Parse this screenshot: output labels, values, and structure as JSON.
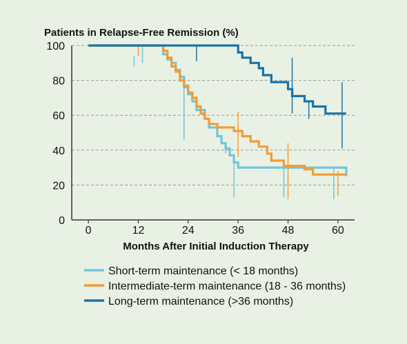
{
  "chart_data": {
    "type": "line",
    "step": true,
    "ylabel": "Patients in Relapse-Free Remission (%)",
    "xlabel": "Months After Initial Induction Therapy",
    "xlim": [
      -4,
      64
    ],
    "ylim": [
      0,
      100
    ],
    "xticks": [
      0,
      12,
      24,
      36,
      48,
      60
    ],
    "yticks": [
      0,
      20,
      40,
      60,
      80,
      100
    ],
    "grid": "horizontal-dashed",
    "legend_position": "bottom-left",
    "series": [
      {
        "name": "Short-term maintenance (< 18 months)",
        "color": "#6fc6dc",
        "points": [
          [
            0,
            100
          ],
          [
            18,
            100
          ],
          [
            18,
            95
          ],
          [
            19,
            95
          ],
          [
            19,
            92
          ],
          [
            20,
            92
          ],
          [
            20,
            90
          ],
          [
            21,
            90
          ],
          [
            21,
            86
          ],
          [
            22,
            86
          ],
          [
            22,
            82
          ],
          [
            23,
            82
          ],
          [
            23,
            76
          ],
          [
            24,
            76
          ],
          [
            24,
            72
          ],
          [
            25,
            72
          ],
          [
            25,
            68
          ],
          [
            26,
            68
          ],
          [
            26,
            63
          ],
          [
            28,
            63
          ],
          [
            28,
            58
          ],
          [
            29,
            58
          ],
          [
            29,
            53
          ],
          [
            31,
            53
          ],
          [
            31,
            48
          ],
          [
            32,
            48
          ],
          [
            32,
            44
          ],
          [
            33,
            44
          ],
          [
            33,
            41
          ],
          [
            34,
            41
          ],
          [
            34,
            37
          ],
          [
            35,
            37
          ],
          [
            35,
            33
          ],
          [
            36,
            33
          ],
          [
            36,
            30
          ],
          [
            62,
            30
          ],
          [
            62,
            25
          ]
        ],
        "censors": [
          [
            11,
            94,
            88
          ],
          [
            13,
            100,
            90
          ],
          [
            23,
            76,
            46
          ],
          [
            33,
            44,
            38
          ],
          [
            35,
            35,
            13
          ],
          [
            47,
            30,
            13
          ],
          [
            59,
            30,
            12
          ]
        ]
      },
      {
        "name": "Intermediate-term maintenance (18 - 36 months)",
        "color": "#f39c34",
        "points": [
          [
            0,
            100
          ],
          [
            18,
            100
          ],
          [
            18,
            97
          ],
          [
            19,
            97
          ],
          [
            19,
            93
          ],
          [
            20,
            93
          ],
          [
            20,
            88
          ],
          [
            21,
            88
          ],
          [
            21,
            85
          ],
          [
            22,
            85
          ],
          [
            22,
            80
          ],
          [
            23,
            80
          ],
          [
            23,
            77
          ],
          [
            24,
            77
          ],
          [
            24,
            73
          ],
          [
            25,
            73
          ],
          [
            25,
            70
          ],
          [
            26,
            70
          ],
          [
            26,
            65
          ],
          [
            27,
            65
          ],
          [
            27,
            61
          ],
          [
            28,
            61
          ],
          [
            28,
            58
          ],
          [
            29,
            58
          ],
          [
            29,
            55
          ],
          [
            31,
            55
          ],
          [
            31,
            53
          ],
          [
            35,
            53
          ],
          [
            35,
            51
          ],
          [
            37,
            51
          ],
          [
            37,
            48
          ],
          [
            39,
            48
          ],
          [
            39,
            45
          ],
          [
            41,
            45
          ],
          [
            41,
            42
          ],
          [
            43,
            42
          ],
          [
            43,
            38
          ],
          [
            44,
            38
          ],
          [
            44,
            34
          ],
          [
            47,
            34
          ],
          [
            47,
            31
          ],
          [
            52,
            31
          ],
          [
            52,
            29
          ],
          [
            54,
            29
          ],
          [
            54,
            26
          ],
          [
            62,
            26
          ]
        ],
        "censors": [
          [
            12,
            100,
            94
          ],
          [
            36,
            62,
            36
          ],
          [
            48,
            44,
            12
          ],
          [
            60,
            28,
            14
          ]
        ]
      },
      {
        "name": "Long-term maintenance (>36 months)",
        "color": "#1a73a8",
        "points": [
          [
            0,
            100
          ],
          [
            36,
            100
          ],
          [
            36,
            96
          ],
          [
            37,
            96
          ],
          [
            37,
            93
          ],
          [
            39,
            93
          ],
          [
            39,
            90
          ],
          [
            41,
            90
          ],
          [
            41,
            87
          ],
          [
            42,
            87
          ],
          [
            42,
            83
          ],
          [
            44,
            83
          ],
          [
            44,
            79
          ],
          [
            48,
            79
          ],
          [
            48,
            75
          ],
          [
            49,
            75
          ],
          [
            49,
            71
          ],
          [
            52,
            71
          ],
          [
            52,
            68
          ],
          [
            54,
            68
          ],
          [
            54,
            65
          ],
          [
            57,
            65
          ],
          [
            57,
            61
          ],
          [
            62,
            61
          ]
        ],
        "censors": [
          [
            26,
            100,
            91
          ],
          [
            49,
            93,
            61
          ],
          [
            53,
            68,
            58
          ],
          [
            61,
            79,
            41
          ]
        ]
      }
    ]
  }
}
